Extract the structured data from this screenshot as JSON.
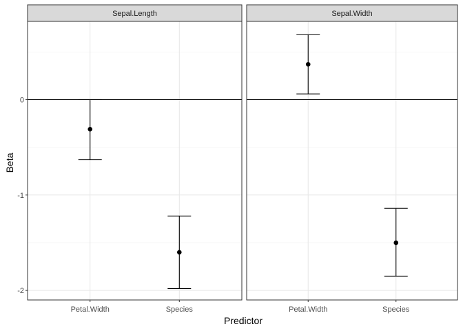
{
  "chart_data": {
    "type": "errorbar",
    "xlabel": "Predictor",
    "ylabel": "Beta",
    "categories": [
      "Petal.Width",
      "Species"
    ],
    "ylim": [
      -2.1,
      0.82
    ],
    "yticks": [
      0,
      -1,
      -2
    ],
    "ytick_labels": [
      "0",
      "-1",
      "-2"
    ],
    "reference_line": 0,
    "grid": true,
    "facets": [
      {
        "name": "Sepal.Length",
        "points": [
          {
            "x": "Petal.Width",
            "y": -0.31,
            "lower": -0.63,
            "upper": 0.0
          },
          {
            "x": "Species",
            "y": -1.6,
            "lower": -1.98,
            "upper": -1.22
          }
        ]
      },
      {
        "name": "Sepal.Width",
        "points": [
          {
            "x": "Petal.Width",
            "y": 0.37,
            "lower": 0.06,
            "upper": 0.68
          },
          {
            "x": "Species",
            "y": -1.5,
            "lower": -1.85,
            "upper": -1.14
          }
        ]
      }
    ]
  }
}
